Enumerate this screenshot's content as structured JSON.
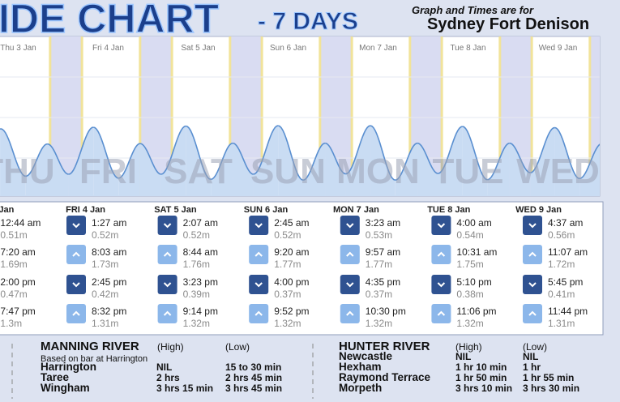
{
  "header": {
    "title": "IDE CHART",
    "subtitle": "- 7 DAYS",
    "location_note": "Graph and Times are for",
    "location": "Sydney Fort Denison"
  },
  "days": [
    {
      "chart_label": "Thu 3 Jan",
      "watermark": "THU",
      "header": "Jan",
      "tides": [
        {
          "time": "12:44 am",
          "height": 0.51,
          "height_label": "0.51m",
          "type": "low"
        },
        {
          "time": "7:20 am",
          "height": 1.69,
          "height_label": "1.69m",
          "type": "high"
        },
        {
          "time": "2:00 pm",
          "height": 0.47,
          "height_label": "0.47m",
          "type": "low"
        },
        {
          "time": "7:47 pm",
          "height": 1.3,
          "height_label": "1.3m",
          "type": "high"
        }
      ]
    },
    {
      "chart_label": "Fri 4 Jan",
      "watermark": "FRI",
      "header": "FRI 4 Jan",
      "tides": [
        {
          "time": "1:27 am",
          "height": 0.52,
          "height_label": "0.52m",
          "type": "low"
        },
        {
          "time": "8:03 am",
          "height": 1.73,
          "height_label": "1.73m",
          "type": "high"
        },
        {
          "time": "2:45 pm",
          "height": 0.42,
          "height_label": "0.42m",
          "type": "low"
        },
        {
          "time": "8:32 pm",
          "height": 1.31,
          "height_label": "1.31m",
          "type": "high"
        }
      ]
    },
    {
      "chart_label": "Sat 5 Jan",
      "watermark": "SAT",
      "header": "SAT 5 Jan",
      "tides": [
        {
          "time": "2:07 am",
          "height": 0.52,
          "height_label": "0.52m",
          "type": "low"
        },
        {
          "time": "8:44 am",
          "height": 1.76,
          "height_label": "1.76m",
          "type": "high"
        },
        {
          "time": "3:23 pm",
          "height": 0.39,
          "height_label": "0.39m",
          "type": "low"
        },
        {
          "time": "9:14 pm",
          "height": 1.32,
          "height_label": "1.32m",
          "type": "high"
        }
      ]
    },
    {
      "chart_label": "Sun 6 Jan",
      "watermark": "SUN",
      "header": "SUN 6 Jan",
      "tides": [
        {
          "time": "2:45 am",
          "height": 0.52,
          "height_label": "0.52m",
          "type": "low"
        },
        {
          "time": "9:20 am",
          "height": 1.77,
          "height_label": "1.77m",
          "type": "high"
        },
        {
          "time": "4:00 pm",
          "height": 0.37,
          "height_label": "0.37m",
          "type": "low"
        },
        {
          "time": "9:52 pm",
          "height": 1.32,
          "height_label": "1.32m",
          "type": "high"
        }
      ]
    },
    {
      "chart_label": "Mon 7 Jan",
      "watermark": "MON",
      "header": "MON 7 Jan",
      "tides": [
        {
          "time": "3:23 am",
          "height": 0.53,
          "height_label": "0.53m",
          "type": "low"
        },
        {
          "time": "9:57 am",
          "height": 1.77,
          "height_label": "1.77m",
          "type": "high"
        },
        {
          "time": "4:35 pm",
          "height": 0.37,
          "height_label": "0.37m",
          "type": "low"
        },
        {
          "time": "10:30 pm",
          "height": 1.32,
          "height_label": "1.32m",
          "type": "high"
        }
      ]
    },
    {
      "chart_label": "Tue 8 Jan",
      "watermark": "TUE",
      "header": "TUE 8 Jan",
      "tides": [
        {
          "time": "4:00 am",
          "height": 0.54,
          "height_label": "0.54m",
          "type": "low"
        },
        {
          "time": "10:31 am",
          "height": 1.75,
          "height_label": "1.75m",
          "type": "high"
        },
        {
          "time": "5:10 pm",
          "height": 0.38,
          "height_label": "0.38m",
          "type": "low"
        },
        {
          "time": "11:06 pm",
          "height": 1.32,
          "height_label": "1.32m",
          "type": "high"
        }
      ]
    },
    {
      "chart_label": "Wed 9 Jan",
      "watermark": "WED",
      "header": "WED 9 Jan",
      "tides": [
        {
          "time": "4:37 am",
          "height": 0.56,
          "height_label": "0.56m",
          "type": "low"
        },
        {
          "time": "11:07 am",
          "height": 1.72,
          "height_label": "1.72m",
          "type": "high"
        },
        {
          "time": "5:45 pm",
          "height": 0.41,
          "height_label": "0.41m",
          "type": "low"
        },
        {
          "time": "11:44 pm",
          "height": 1.31,
          "height_label": "1.31m",
          "type": "high"
        }
      ]
    }
  ],
  "rivers": [
    {
      "name": "MANNING RIVER",
      "high": "(High)",
      "low": "(Low)",
      "note": "Based on bar at Harrington",
      "rows": [
        [
          "Harrington",
          "NIL",
          "15 to 30 min"
        ],
        [
          "Taree",
          "2 hrs",
          "2 hrs 45 min"
        ],
        [
          "Wingham",
          "3 hrs 15 min",
          "3 hrs 45 min"
        ]
      ]
    },
    {
      "name": "HUNTER RIVER",
      "high": "(High)",
      "low": "(Low)",
      "rows": [
        [
          "Newcastle",
          "NIL",
          "NIL"
        ],
        [
          "Hexham",
          "1 hr 10 min",
          "1 hr"
        ],
        [
          "Raymond Terrace",
          "1 hr 50 min",
          "1 hr 55 min"
        ],
        [
          "Morpeth",
          "3 hrs 10 min",
          "3 hrs 30 min"
        ]
      ]
    }
  ]
}
